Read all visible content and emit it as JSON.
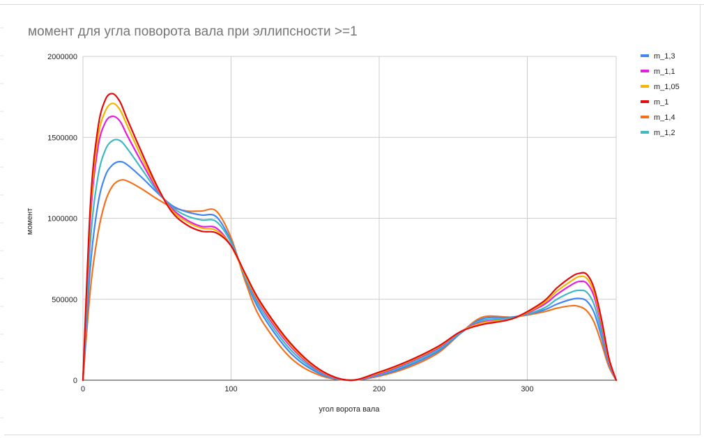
{
  "chart_data": {
    "type": "line",
    "title": "момент для угла поворота вала при эллипсности >=1",
    "xlabel": "угол ворота вала",
    "ylabel": "момент",
    "xlim": [
      0,
      360
    ],
    "ylim": [
      0,
      2000000
    ],
    "x_ticks": [
      0,
      100,
      200,
      300
    ],
    "x_tick_labels": [
      "0",
      "100",
      "200",
      "300"
    ],
    "y_ticks": [
      0,
      500000,
      1000000,
      1500000,
      2000000
    ],
    "y_tick_labels": [
      "0",
      "500000",
      "1000000",
      "1500000",
      "2000000"
    ],
    "grid": true,
    "legend_position": "right",
    "x": [
      0,
      5,
      10,
      15,
      20,
      25,
      30,
      40,
      50,
      60,
      70,
      80,
      90,
      100,
      110,
      120,
      140,
      160,
      180,
      200,
      220,
      240,
      255,
      270,
      290,
      310,
      320,
      330,
      335,
      340,
      345,
      350,
      355,
      360
    ],
    "series": [
      {
        "name": "m_1,3",
        "color": "#4285f4",
        "values": [
          0,
          700000,
          1080000,
          1260000,
          1330000,
          1350000,
          1330000,
          1250000,
          1160000,
          1080000,
          1040000,
          1020000,
          1010000,
          860000,
          620000,
          420000,
          170000,
          40000,
          0,
          30000,
          90000,
          180000,
          290000,
          380000,
          390000,
          430000,
          470000,
          500000,
          505000,
          490000,
          420000,
          270000,
          100000,
          0
        ]
      },
      {
        "name": "m_1,1",
        "color": "#e41de0",
        "values": [
          0,
          990000,
          1430000,
          1590000,
          1630000,
          1600000,
          1510000,
          1340000,
          1180000,
          1060000,
          990000,
          950000,
          940000,
          830000,
          640000,
          460000,
          210000,
          55000,
          0,
          40000,
          110000,
          200000,
          300000,
          360000,
          380000,
          460000,
          530000,
          590000,
          610000,
          600000,
          520000,
          340000,
          120000,
          0
        ]
      },
      {
        "name": "m_1,05",
        "color": "#f4b400",
        "values": [
          0,
          1030000,
          1490000,
          1660000,
          1710000,
          1670000,
          1570000,
          1370000,
          1190000,
          1050000,
          980000,
          940000,
          925000,
          830000,
          640000,
          470000,
          220000,
          60000,
          0,
          45000,
          115000,
          205000,
          300000,
          355000,
          380000,
          470000,
          550000,
          615000,
          640000,
          630000,
          545000,
          360000,
          130000,
          0
        ]
      },
      {
        "name": "m_1",
        "color": "#e30a0a",
        "values": [
          0,
          1080000,
          1550000,
          1730000,
          1770000,
          1720000,
          1610000,
          1400000,
          1200000,
          1040000,
          960000,
          920000,
          910000,
          830000,
          650000,
          480000,
          230000,
          65000,
          0,
          50000,
          120000,
          210000,
          300000,
          345000,
          380000,
          480000,
          570000,
          640000,
          660000,
          655000,
          570000,
          380000,
          140000,
          0
        ]
      },
      {
        "name": "m_1,4",
        "color": "#f2711c",
        "values": [
          0,
          560000,
          900000,
          1100000,
          1200000,
          1235000,
          1230000,
          1180000,
          1120000,
          1070000,
          1045000,
          1045000,
          1045000,
          880000,
          600000,
          380000,
          140000,
          30000,
          0,
          25000,
          80000,
          170000,
          290000,
          390000,
          390000,
          420000,
          445000,
          460000,
          455000,
          430000,
          360000,
          230000,
          85000,
          0
        ]
      },
      {
        "name": "m_1,2",
        "color": "#3fb8c6",
        "values": [
          0,
          850000,
          1250000,
          1420000,
          1480000,
          1480000,
          1430000,
          1300000,
          1170000,
          1070000,
          1015000,
          990000,
          980000,
          850000,
          630000,
          440000,
          190000,
          48000,
          0,
          35000,
          100000,
          190000,
          295000,
          370000,
          385000,
          440000,
          500000,
          545000,
          555000,
          545000,
          470000,
          300000,
          110000,
          0
        ]
      }
    ]
  }
}
